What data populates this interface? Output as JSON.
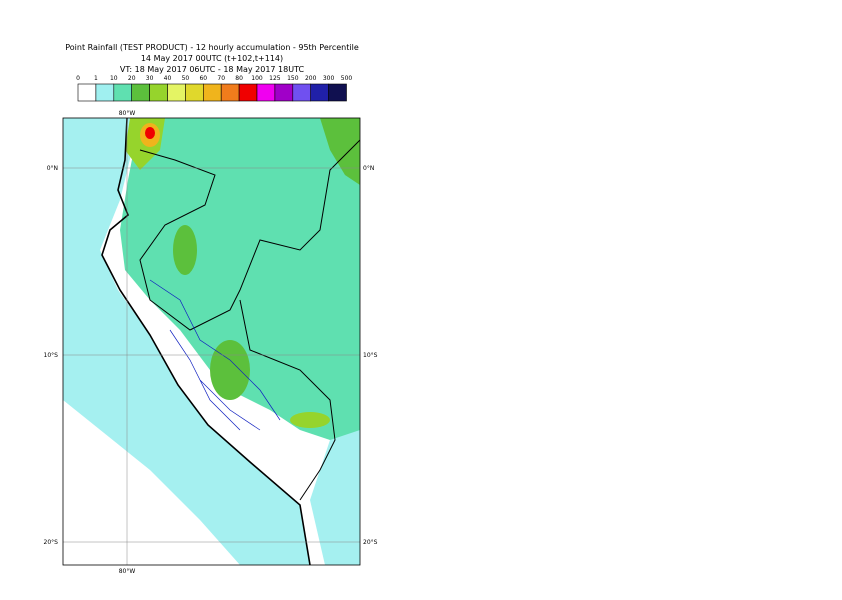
{
  "header": {
    "title": "Point Rainfall (TEST PRODUCT) - 12 hourly accumulation - 95th Percentile",
    "subtitle": "14 May 2017 00UTC (t+102,t+114)",
    "validity": "VT: 18 May 2017 06UTC - 18 May 2017 18UTC"
  },
  "legend": {
    "labels": [
      "0",
      "1",
      "10",
      "20",
      "30",
      "40",
      "50",
      "60",
      "70",
      "80",
      "100",
      "125",
      "150",
      "200",
      "300",
      "500"
    ],
    "colors": [
      "#ffffff",
      "#a0f0f0",
      "#5fe0b0",
      "#5cc03c",
      "#96d42c",
      "#e4f464",
      "#e0d82c",
      "#f0b41c",
      "#f07c1c",
      "#f00000",
      "#f000f0",
      "#a000c8",
      "#7050f0",
      "#2020a8",
      "#101050"
    ]
  },
  "map": {
    "lon_top": "80°W",
    "lon_bottom": "80°W",
    "lat_labels": [
      {
        "left": "0°N",
        "right": "0°N"
      },
      {
        "left": "10°S",
        "right": "10°S"
      },
      {
        "left": "20°S",
        "right": "20°S"
      }
    ]
  }
}
